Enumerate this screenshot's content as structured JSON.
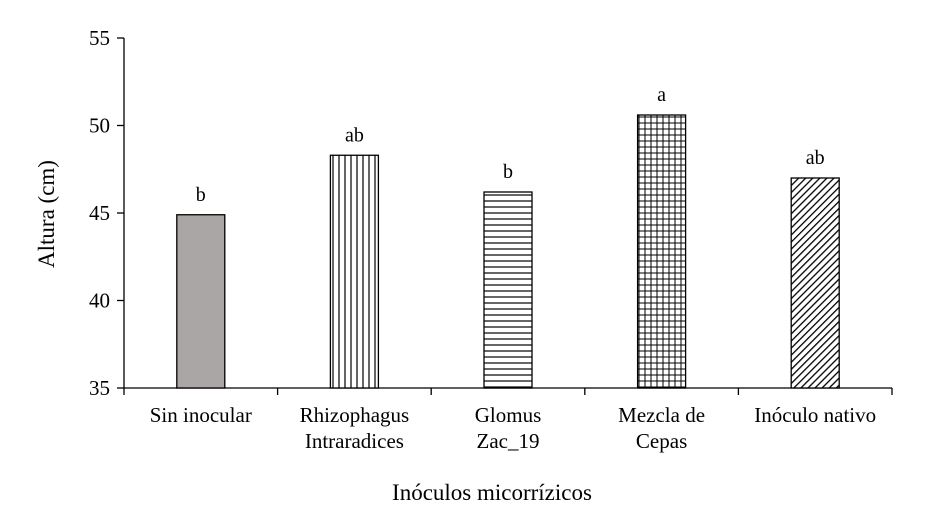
{
  "chart_data": {
    "type": "bar",
    "title": "",
    "xlabel": "Inóculos micorrízicos",
    "ylabel": "Altura (cm)",
    "ylim": [
      35,
      55
    ],
    "yticks": [
      "35",
      "40",
      "45",
      "50",
      "55"
    ],
    "grid": false,
    "categories": [
      [
        "Sin inocular"
      ],
      [
        "Rhizophagus",
        "Intraradices"
      ],
      [
        "Glomus",
        "Zac_19"
      ],
      [
        "Mezcla de",
        "Cepas"
      ],
      [
        "Inóculo nativo"
      ]
    ],
    "values": [
      44.9,
      48.3,
      46.2,
      50.6,
      47.0
    ],
    "significance_labels": [
      "b",
      "ab",
      "b",
      "a",
      "ab"
    ],
    "fills": [
      "solid-gray",
      "vertical-lines",
      "horizontal-lines",
      "grid",
      "diagonal-lines"
    ],
    "colors": {
      "solid_fill": "#aaa6a6",
      "stroke": "#000000",
      "background": "#ffffff"
    }
  }
}
